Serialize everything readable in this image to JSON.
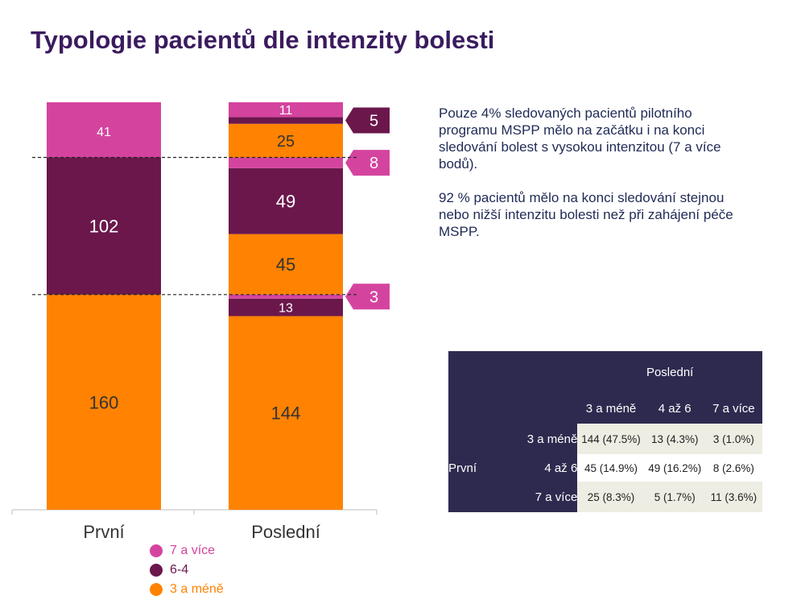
{
  "title": "Typologie pacientů dle intenzity bolesti",
  "description": [
    "Pouze 4% sledovaných pacientů pilotního programu MSPP  mělo na začátku i na konci sledování bolest  s vysokou intenzitou (7 a více bodů).",
    "92 % pacientů mělo na konci sledování stejnou nebo nižší intenzitu bolesti než při zahájení péče MSPP."
  ],
  "colors": {
    "high": "#d4449f",
    "mid": "#6b174c",
    "low": "#ff8200",
    "dark": "#2e2a4f",
    "title": "#3b1b5f"
  },
  "chart_data": {
    "type": "bar",
    "stacked": true,
    "categories": [
      "První",
      "Poslední"
    ],
    "bars": [
      {
        "category": "První",
        "segments": [
          {
            "value": 160,
            "level": "low"
          },
          {
            "value": 102,
            "level": "mid"
          },
          {
            "value": 41,
            "level": "high"
          }
        ]
      },
      {
        "category": "Poslední",
        "segments": [
          {
            "value": 144,
            "level": "low"
          },
          {
            "value": 13,
            "level": "mid"
          },
          {
            "value": 3,
            "level": "high",
            "label": "3",
            "label_outside": true
          },
          {
            "value": 45,
            "level": "low"
          },
          {
            "value": 49,
            "level": "mid"
          },
          {
            "value": 8,
            "level": "high",
            "label": "8",
            "label_outside": true
          },
          {
            "value": 25,
            "level": "low"
          },
          {
            "value": 5,
            "level": "mid",
            "label": "5",
            "label_outside": true
          },
          {
            "value": 11,
            "level": "high"
          }
        ]
      }
    ],
    "legend": [
      {
        "label": "7 a více",
        "level": "high"
      },
      {
        "label": "6-4",
        "level": "mid"
      },
      {
        "label": "3 a méně",
        "level": "low"
      }
    ]
  },
  "table": {
    "header_top": "Poslední",
    "row_group": "První",
    "col_headers": [
      "3 a méně",
      "4 až 6",
      "7 a více"
    ],
    "rows": [
      {
        "label": "3 a méně",
        "cells": [
          "144 (47.5%)",
          "13 (4.3%)",
          "3 (1.0%)"
        ]
      },
      {
        "label": "4 až 6",
        "cells": [
          "45 (14.9%)",
          "49 (16.2%)",
          "8 (2.6%)"
        ]
      },
      {
        "label": "7 a více",
        "cells": [
          "25 (8.3%)",
          "5 (1.7%)",
          "11 (3.6%)"
        ]
      }
    ]
  }
}
